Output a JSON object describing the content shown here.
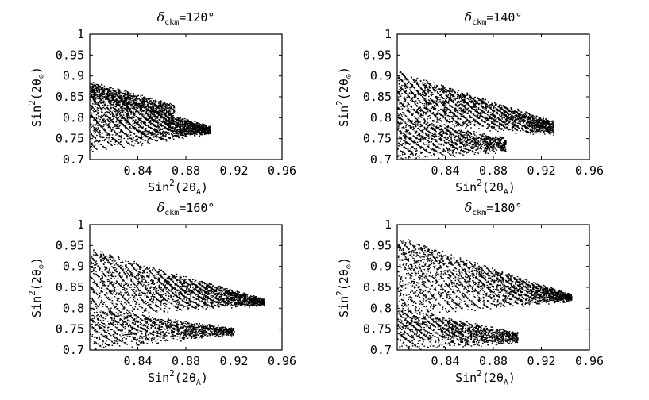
{
  "chart_data": [
    {
      "type": "scatter",
      "title": "δckm=120°",
      "title_parts": {
        "symbol": "δ",
        "subscript": "ckm",
        "rest": "=120°"
      },
      "xlabel": "Sin²(2θA)",
      "ylabel": "Sin²(2θ⊙)",
      "xlim": [
        0.8,
        0.96
      ],
      "ylim": [
        0.7,
        1.0
      ],
      "xticks": [
        "0.84",
        "0.88",
        "0.92",
        "0.96"
      ],
      "yticks": [
        "0.7",
        "0.75",
        "0.8",
        "0.85",
        "0.9",
        "0.95",
        "1"
      ],
      "bands": [
        {
          "x0": 0.8,
          "x1": 0.9,
          "y_top": [
            0.868,
            0.777
          ],
          "y_bottom": [
            0.72,
            0.765
          ],
          "density": 1.0
        },
        {
          "x0": 0.8,
          "x1": 0.87,
          "y_top": [
            0.885,
            0.83
          ],
          "y_bottom": [
            0.85,
            0.8
          ],
          "density": 0.35
        }
      ]
    },
    {
      "type": "scatter",
      "title": "δckm=140°",
      "title_parts": {
        "symbol": "δ",
        "subscript": "ckm",
        "rest": "=140°"
      },
      "xlabel": "Sin²(2θA)",
      "ylabel": "Sin²(2θ⊙)",
      "xlim": [
        0.8,
        0.96
      ],
      "ylim": [
        0.7,
        1.0
      ],
      "xticks": [
        "0.84",
        "0.88",
        "0.92",
        "0.96"
      ],
      "yticks": [
        "0.7",
        "0.75",
        "0.8",
        "0.85",
        "0.9",
        "0.95",
        "1"
      ],
      "bands": [
        {
          "x0": 0.8,
          "x1": 0.93,
          "y_top": [
            0.91,
            0.79
          ],
          "y_bottom": [
            0.79,
            0.76
          ],
          "density": 1.0
        },
        {
          "x0": 0.8,
          "x1": 0.89,
          "y_top": [
            0.8,
            0.75
          ],
          "y_bottom": [
            0.7,
            0.72
          ],
          "density": 0.5
        }
      ]
    },
    {
      "type": "scatter",
      "title": "δckm=160°",
      "title_parts": {
        "symbol": "δ",
        "subscript": "ckm",
        "rest": "=160°"
      },
      "xlabel": "Sin²(2θA)",
      "ylabel": "Sin²(2θ⊙)",
      "xlim": [
        0.8,
        0.96
      ],
      "ylim": [
        0.7,
        1.0
      ],
      "xticks": [
        "0.84",
        "0.88",
        "0.92",
        "0.96"
      ],
      "yticks": [
        "0.7",
        "0.75",
        "0.8",
        "0.85",
        "0.9",
        "0.95",
        "1"
      ],
      "bands": [
        {
          "x0": 0.8,
          "x1": 0.945,
          "y_top": [
            0.94,
            0.82
          ],
          "y_bottom": [
            0.78,
            0.81
          ],
          "density": 1.0
        },
        {
          "x0": 0.8,
          "x1": 0.92,
          "y_top": [
            0.8,
            0.75
          ],
          "y_bottom": [
            0.7,
            0.74
          ],
          "density": 0.55
        }
      ]
    },
    {
      "type": "scatter",
      "title": "δckm=180°",
      "title_parts": {
        "symbol": "δ",
        "subscript": "ckm",
        "rest": "=180°"
      },
      "xlabel": "Sin²(2θA)",
      "ylabel": "Sin²(2θ⊙)",
      "xlim": [
        0.8,
        0.96
      ],
      "ylim": [
        0.7,
        1.0
      ],
      "xticks": [
        "0.84",
        "0.88",
        "0.92",
        "0.96"
      ],
      "yticks": [
        "0.7",
        "0.75",
        "0.8",
        "0.85",
        "0.9",
        "0.95",
        "1"
      ],
      "bands": [
        {
          "x0": 0.8,
          "x1": 0.945,
          "y_top": [
            0.97,
            0.83
          ],
          "y_bottom": [
            0.78,
            0.82
          ],
          "density": 1.0
        },
        {
          "x0": 0.8,
          "x1": 0.9,
          "y_top": [
            0.8,
            0.74
          ],
          "y_bottom": [
            0.7,
            0.72
          ],
          "density": 0.55
        }
      ]
    }
  ]
}
